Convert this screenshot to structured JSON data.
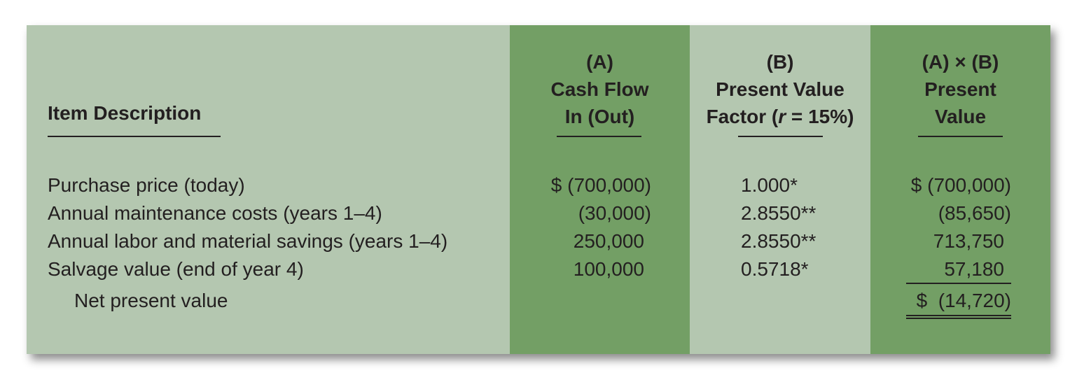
{
  "columns": {
    "item": "Item Description",
    "a": [
      "(A)",
      "Cash Flow",
      "In (Out)"
    ],
    "b": [
      "(B)",
      "Present Value",
      "Factor (r = 15%)"
    ],
    "b_parts": {
      "prefix": "Factor (",
      "italic": "r",
      "suffix": " = 15%)"
    },
    "ab": [
      "(A) × (B)",
      "Present",
      "Value"
    ]
  },
  "rows": [
    {
      "item": "Purchase price (today)",
      "a": "$ (700,000)",
      "b": "1.000*",
      "ab": "$ (700,000)"
    },
    {
      "item": "Annual maintenance costs (years 1–4)",
      "a": "(30,000)",
      "b": "2.8550**",
      "ab": "(85,650)"
    },
    {
      "item": "Annual labor and material savings (years 1–4)",
      "a": "250,000",
      "b": "2.8550**",
      "ab": "713,750"
    },
    {
      "item": "Salvage value (end of year 4)",
      "a": "100,000",
      "b": "0.5718*",
      "ab": "57,180"
    }
  ],
  "total": {
    "item": "Net present value",
    "ab": "$  (14,720)"
  },
  "colors": {
    "light": "#b4c7b0",
    "dark": "#739f65",
    "text": "#231f20"
  }
}
